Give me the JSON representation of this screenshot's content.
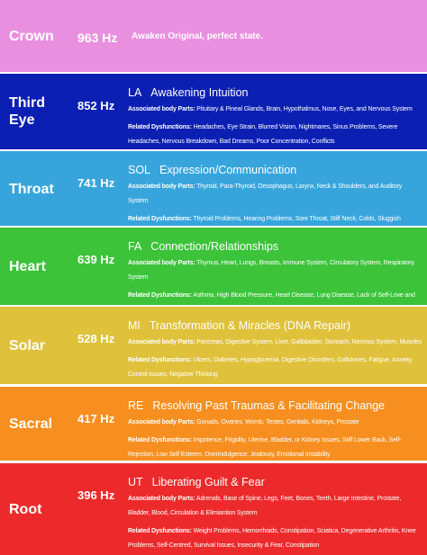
{
  "labels": {
    "parts": "Associated body Parts:",
    "dysfunctions": "Related Dysfunctions:"
  },
  "rows": [
    {
      "name": "Crown",
      "hz": "963 Hz",
      "color": "#e98fe0",
      "description": "Awaken Original, perfect state."
    },
    {
      "name": "Third Eye",
      "hz": "852 Hz",
      "color": "#0b20b3",
      "note": "LA",
      "title": "Awakening Intuition",
      "parts": "Pituitary & Pineal Glands, Brain, Hypothalmus, Nose, Eyes, and Nervous System",
      "dysfunctions": "Headaches, Eye Strain, Blurred Vision, Nightmares, Sinus Problems, Severe Headaches, Nervous  Breakdown, Bad Dreams, Poor Concentration, Conflicts"
    },
    {
      "name": "Throat",
      "hz": "741 Hz",
      "color": "#37a5dc",
      "note": "SOL",
      "title": "Expression/Communication",
      "parts": "Thyroid, Para-Thyroid, Oesophagus, Larynx, Neck & Shoulders, and Auditory System",
      "dysfunctions": "Thyroid Problems, Hearing Problems, Sore Throat, Stiff Neck, Colds, Sluggish Metabolism, Weight Problems, Creative Blocks, Suppression, Weak Willpower."
    },
    {
      "name": "Heart",
      "hz": "639 Hz",
      "color": "#3cc33a",
      "note": "FA",
      "title": "Connection/Relationships",
      "parts": "Thymus, Heart, Lungs, Breasts, Immune System, Circulatory System, Respiratory System",
      "dysfunctions": "Asthma, High Blood Pressure, Heart Disease, Lung Disease, Lack of Self-Love and Acceptance, Loneliness, Emotional Instability, Heart Problems, Circulation."
    },
    {
      "name": "Solar",
      "hz": "528 Hz",
      "color": "#dfc13b",
      "note": "MI",
      "title": "Transformation & Miracles (DNA Repair)",
      "parts": "Pancreas, Digestive System, Liver, Gallbladder, Stomach, Nervous System, Muscles",
      "dysfunctions": "Ulcers, Diabetes, Hypoglycemia, Digestive Disorders, Gallstones, Fatigue, Anxiety, Control Issues, Negative Thinking"
    },
    {
      "name": "Sacral",
      "hz": "417 Hz",
      "color": "#f68f1f",
      "note": "RE",
      "title": "Resolving Past Traumas & Facilitating Change",
      "parts": "Gonads, Ovaries, Womb, Testes, Genitals, Kidneys, Prostate",
      "dysfunctions": "Impotence, Frigidity, Uterine, Bladder, or Kidney Issues, Stiff Lower Back, Self-Rejection, Low Self Esteem, Overindulgence, Jealousy, Emotional Instability"
    },
    {
      "name": "Root",
      "hz": "396 Hz",
      "color": "#ec2a2b",
      "note": "UT",
      "title": "Liberating Guilt & Fear",
      "parts": "Adrenals, Base of Spine, Legs, Feet, Bones, Teeth, Large Intestine, Prostate, Bladder, Blood, Circulation & Elimiantion System",
      "dysfunctions": "Weight Problems, Hemorrhoids, Constipation, Sciatica, Degenerative Arthritis, Knee Problems, Self-Centred, Survival Issues, Insecurity & Fear, Constipation"
    }
  ]
}
